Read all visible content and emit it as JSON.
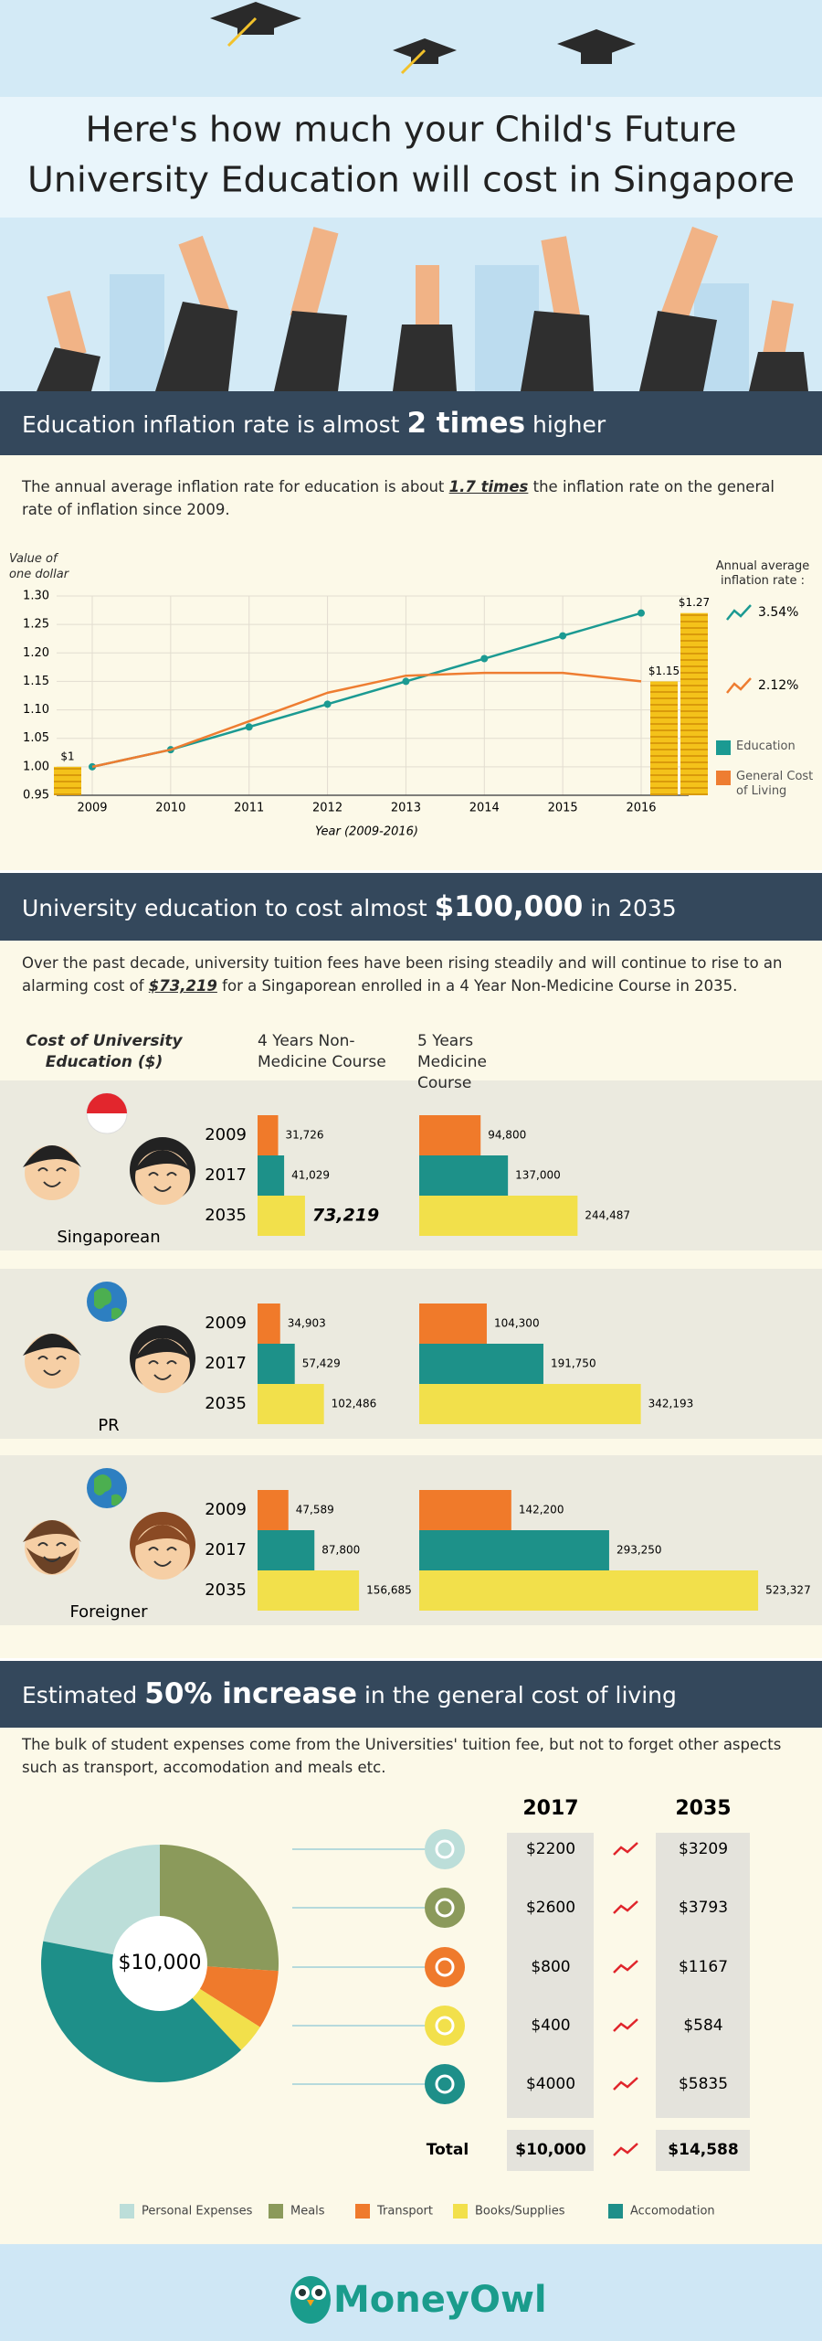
{
  "header": {
    "title_lines": [
      "Here's how much your Child's Future",
      "University Education will cost in Singapore"
    ]
  },
  "sections": [
    {
      "heading": [
        "Education inflation rate is almost ",
        "2 times",
        " higher"
      ],
      "paragraph": [
        "The annual average inflation rate for education is about ",
        "1.7 times",
        " the inflation rate on the general rate of inflation since 2009."
      ]
    },
    {
      "heading": [
        "University education to cost almost ",
        "$100,000",
        " in 2035"
      ],
      "paragraph": [
        "Over the past decade, university tuition fees have been rising steadily and will continue to rise to an alarming cost of ",
        "$73,219",
        " for a Singaporean enrolled in a 4 Year Non-Medicine Course in 2035."
      ]
    },
    {
      "heading": [
        "Estimated ",
        "50% increase",
        " in the general cost of living"
      ],
      "paragraph": [
        "The bulk of student expenses come from the Universities' tuition fee, but not to forget other aspects such as transport, accomodation and meals etc."
      ]
    }
  ],
  "chart_data": [
    {
      "type": "line",
      "y_label": "Value of one dollar",
      "x_label": "Year (2009-2016)",
      "categories": [
        "2009",
        "2010",
        "2011",
        "2012",
        "2013",
        "2014",
        "2015",
        "2016"
      ],
      "series": [
        {
          "name": "Education",
          "color": "#1b9a92",
          "markers": true,
          "rate": "3.54%",
          "values": [
            1.0,
            1.03,
            1.07,
            1.11,
            1.15,
            1.19,
            1.23,
            1.27
          ]
        },
        {
          "name": "General Cost of Living",
          "color": "#ee7d31",
          "markers": false,
          "rate": "2.12%",
          "values": [
            1.0,
            1.03,
            1.08,
            1.13,
            1.16,
            1.165,
            1.165,
            1.15
          ]
        }
      ],
      "ylim": [
        0.95,
        1.3
      ],
      "yticks": [
        0.95,
        {
          "value": 1,
          "label": "1.00"
        },
        1.05,
        {
          "value": 1.1,
          "label": "1.10"
        },
        1.15,
        {
          "value": 1.2,
          "label": "1.20"
        },
        1.25,
        {
          "value": 1.3,
          "label": "1.30"
        }
      ],
      "grid": true,
      "legend_title": "Annual average inflation rate :",
      "annotations": [
        {
          "label": "$1",
          "value": 1
        },
        {
          "label": "$1.15",
          "value": 1.15
        },
        {
          "label": "$1.27",
          "value": 1.27
        }
      ]
    },
    {
      "type": "bar",
      "orientation": "horizontal",
      "title": "Cost of University Education ($)",
      "courses": [
        "4 Years Non-Medicine Course",
        "5 Years Medicine Course"
      ],
      "categories": [
        "2009",
        "2017",
        "2035"
      ],
      "colors": [
        "#f07a2a",
        "#1d9189",
        "#f2e04b"
      ],
      "xlim": [
        0,
        550000
      ],
      "groups": [
        {
          "name": "Singaporean",
          "values": [
            [
              31726,
              41029,
              73219
            ],
            [
              94800,
              137000,
              244487
            ]
          ],
          "value_labels": [
            [
              "31,726",
              "41,029",
              "73,219"
            ],
            [
              "94,800",
              "137,000",
              "244,487"
            ]
          ]
        },
        {
          "name": "PR",
          "values": [
            [
              34903,
              57429,
              102486
            ],
            [
              104300,
              191750,
              342193
            ]
          ],
          "value_labels": [
            [
              "34,903",
              "57,429",
              "102,486"
            ],
            [
              "104,300",
              "191,750",
              "342,193"
            ]
          ]
        },
        {
          "name": "Foreigner",
          "values": [
            [
              47589,
              87800,
              156685
            ],
            [
              142200,
              293250,
              523327
            ]
          ],
          "value_labels": [
            [
              "47,589",
              "87,800",
              "156,685"
            ],
            [
              "142,200",
              "293,250",
              "523,327"
            ]
          ]
        }
      ]
    },
    {
      "type": "pie",
      "center_label": "$10,000",
      "categories": [
        "Personal Expenses",
        "Meals",
        "Transport",
        "Books/Supplies",
        "Accomodation"
      ],
      "colors": [
        "#bcded9",
        "#8b9a5b",
        "#ef7a2c",
        "#f2e04b",
        "#1e8f89"
      ],
      "values": [
        2200,
        2600,
        800,
        400,
        4000
      ],
      "value_labels": [
        "$2200",
        "$2600",
        "$800",
        "$400",
        "$4000"
      ]
    }
  ],
  "cost_table": {
    "columns": [
      "2017",
      "2035"
    ],
    "values_2035": [
      "$3209",
      "$3793",
      "$1167",
      "$584",
      "$5835"
    ],
    "total_label": "Total",
    "totals": [
      "$10,000",
      "$14,588"
    ]
  },
  "footer": {
    "brand": "MoneyOwl"
  }
}
